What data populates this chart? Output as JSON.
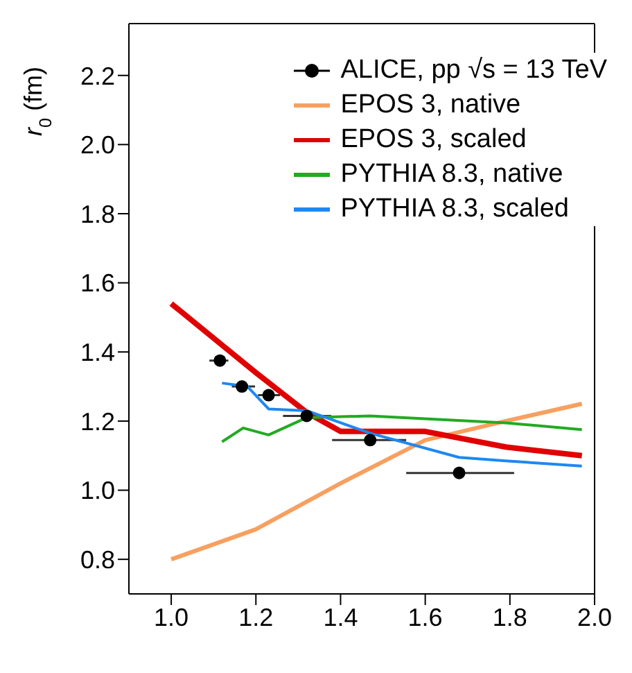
{
  "chart_data": {
    "type": "line",
    "ylabel": "r$_{0}$ (fm)",
    "xlim": [
      0.9,
      2.0
    ],
    "xticks": [
      {
        "value": 1,
        "label": "1.0"
      },
      1.2,
      1.4,
      1.6,
      1.8,
      {
        "value": 2,
        "label": "2.0"
      }
    ],
    "ylim": [
      0.7,
      2.35
    ],
    "yticks": [
      0.8,
      {
        "value": 1,
        "label": "1.0"
      },
      1.2,
      1.4,
      1.6,
      1.8,
      {
        "value": 2,
        "label": "2.0"
      },
      2.2
    ],
    "legend": "top right",
    "grid": false,
    "series": [
      {
        "name": "ALICE, pp √s = 13 TeV",
        "type": "scatter",
        "color": "#000000",
        "marker": "circle",
        "x": [
          1.115,
          1.167,
          1.23,
          1.32,
          1.47,
          1.68
        ],
        "values": [
          1.375,
          1.3,
          1.275,
          1.215,
          1.145,
          1.05
        ],
        "xerrors": [
          [
            1.09,
            1.135
          ],
          [
            1.143,
            1.198
          ],
          [
            1.205,
            1.257
          ],
          [
            1.264,
            1.378
          ],
          [
            1.38,
            1.555
          ],
          [
            1.555,
            1.81
          ]
        ]
      },
      {
        "name": "EPOS 3, native",
        "color": "#f7a060",
        "x": [
          1.0,
          1.2,
          1.4,
          1.6,
          1.79,
          1.97
        ],
        "values": [
          0.8,
          0.887,
          1.02,
          1.145,
          1.2,
          1.25
        ]
      },
      {
        "name": "EPOS 3, scaled",
        "color": "#e00000",
        "x": [
          1.0,
          1.2,
          1.32,
          1.4,
          1.6,
          1.79,
          1.97
        ],
        "values": [
          1.54,
          1.34,
          1.225,
          1.17,
          1.17,
          1.125,
          1.1
        ]
      },
      {
        "name": "PYTHIA 8.3, native",
        "color": "#22aa22",
        "x": [
          1.12,
          1.17,
          1.23,
          1.32,
          1.47,
          1.79,
          1.97
        ],
        "values": [
          1.14,
          1.18,
          1.16,
          1.21,
          1.215,
          1.195,
          1.175
        ]
      },
      {
        "name": "PYTHIA 8.3, scaled",
        "color": "#1e88f0",
        "x": [
          1.12,
          1.18,
          1.23,
          1.32,
          1.47,
          1.68,
          1.79,
          1.97
        ],
        "values": [
          1.31,
          1.3,
          1.235,
          1.23,
          1.165,
          1.095,
          1.085,
          1.07
        ]
      }
    ]
  }
}
